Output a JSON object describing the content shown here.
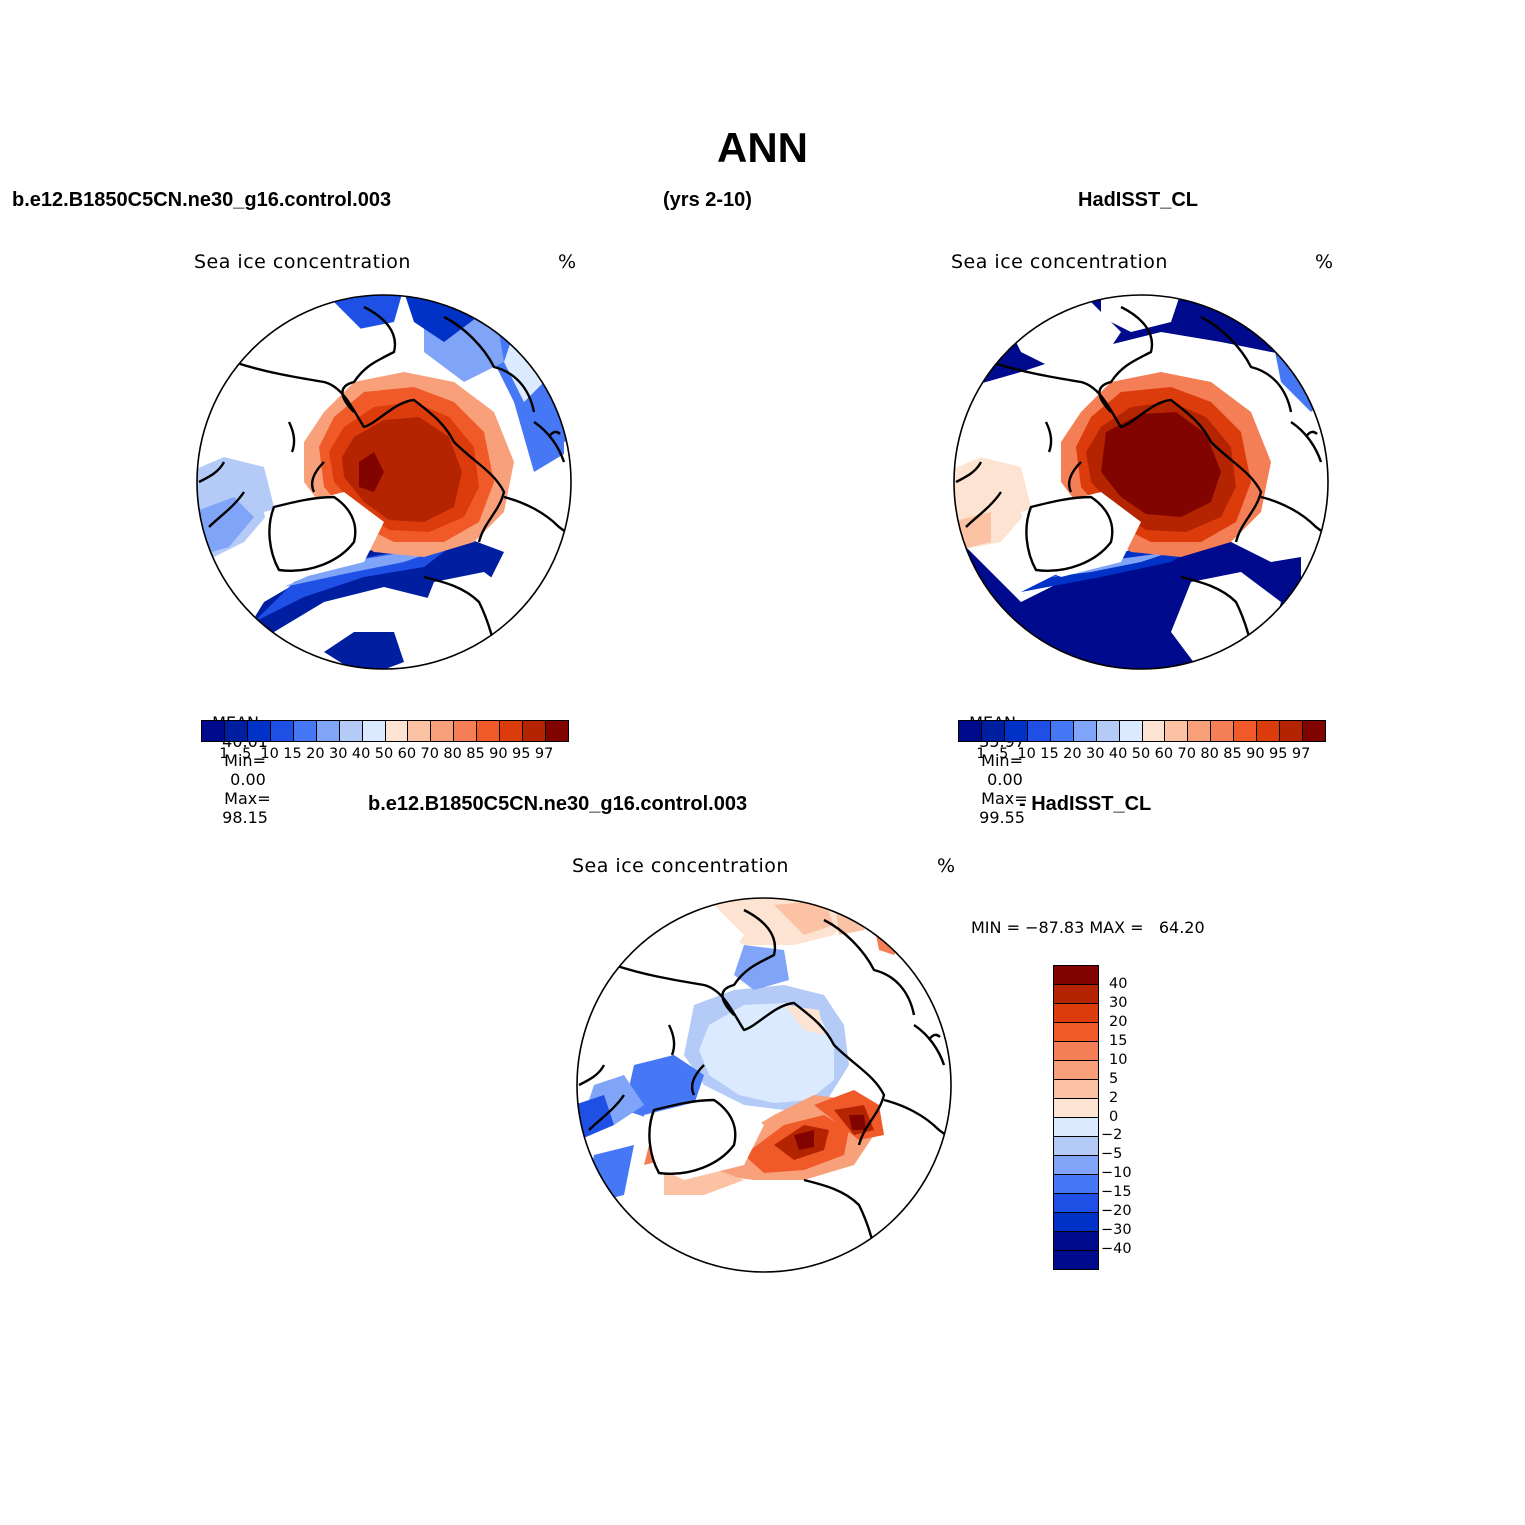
{
  "figure": {
    "title": "ANN",
    "case_name": "b.e12.B1850C5CN.ne30_g16.control.003",
    "years": "(yrs 2-10)",
    "obs_name": "HadISST_CL",
    "diff_case_name": "b.e12.B1850C5CN.ne30_g16.control.003",
    "diff_obs_name": "- HadISST_CL"
  },
  "colors": {
    "abs_levels": [
      "#000a8c",
      "#001ea0",
      "#0032c8",
      "#1e50e6",
      "#4678f5",
      "#80a4f8",
      "#b4cbf8",
      "#dbeafe",
      "#fde4d2",
      "#fbc3a3",
      "#f7a07a",
      "#f47e55",
      "#f05a28",
      "#dc3c0c",
      "#b42400",
      "#820400"
    ],
    "diff_levels": [
      "#000a8c",
      "#0032c8",
      "#1e50e6",
      "#4678f5",
      "#80a4f8",
      "#b4cbf8",
      "#dbeafe",
      "#fde4d2",
      "#fbc3a3",
      "#f7a07a",
      "#f47e55",
      "#f05a28",
      "#dc3c0c",
      "#b42400",
      "#820400"
    ]
  },
  "panels": [
    {
      "variable": "Sea ice concentration",
      "units": "%",
      "mean_label": "MEAN=",
      "mean_value": "40.01",
      "min_label": "Min=",
      "min_value": "0.00",
      "max_label": "Max=",
      "max_value": "98.15",
      "colorbar_labels": [
        "1",
        "5",
        "10",
        "15",
        "20",
        "30",
        "40",
        "50",
        "60",
        "70",
        "80",
        "85",
        "90",
        "95",
        "97"
      ]
    },
    {
      "variable": "Sea ice concentration",
      "units": "%",
      "mean_label": "MEAN=",
      "mean_value": "35.97",
      "min_label": "Min=",
      "min_value": "0.00",
      "max_label": "Max=",
      "max_value": "99.55",
      "colorbar_labels": [
        "1",
        "5",
        "10",
        "15",
        "20",
        "30",
        "40",
        "50",
        "60",
        "70",
        "80",
        "85",
        "90",
        "95",
        "97"
      ]
    },
    {
      "variable": "Sea ice concentration",
      "units": "%",
      "minmax_text": "MIN = −87.83 MAX =   64.20",
      "colorbar_labels": [
        "40",
        "30",
        "20",
        "15",
        "10",
        "5",
        "2",
        "0",
        "−2",
        "−5",
        "−10",
        "−15",
        "−20",
        "−30",
        "−40"
      ]
    }
  ]
}
